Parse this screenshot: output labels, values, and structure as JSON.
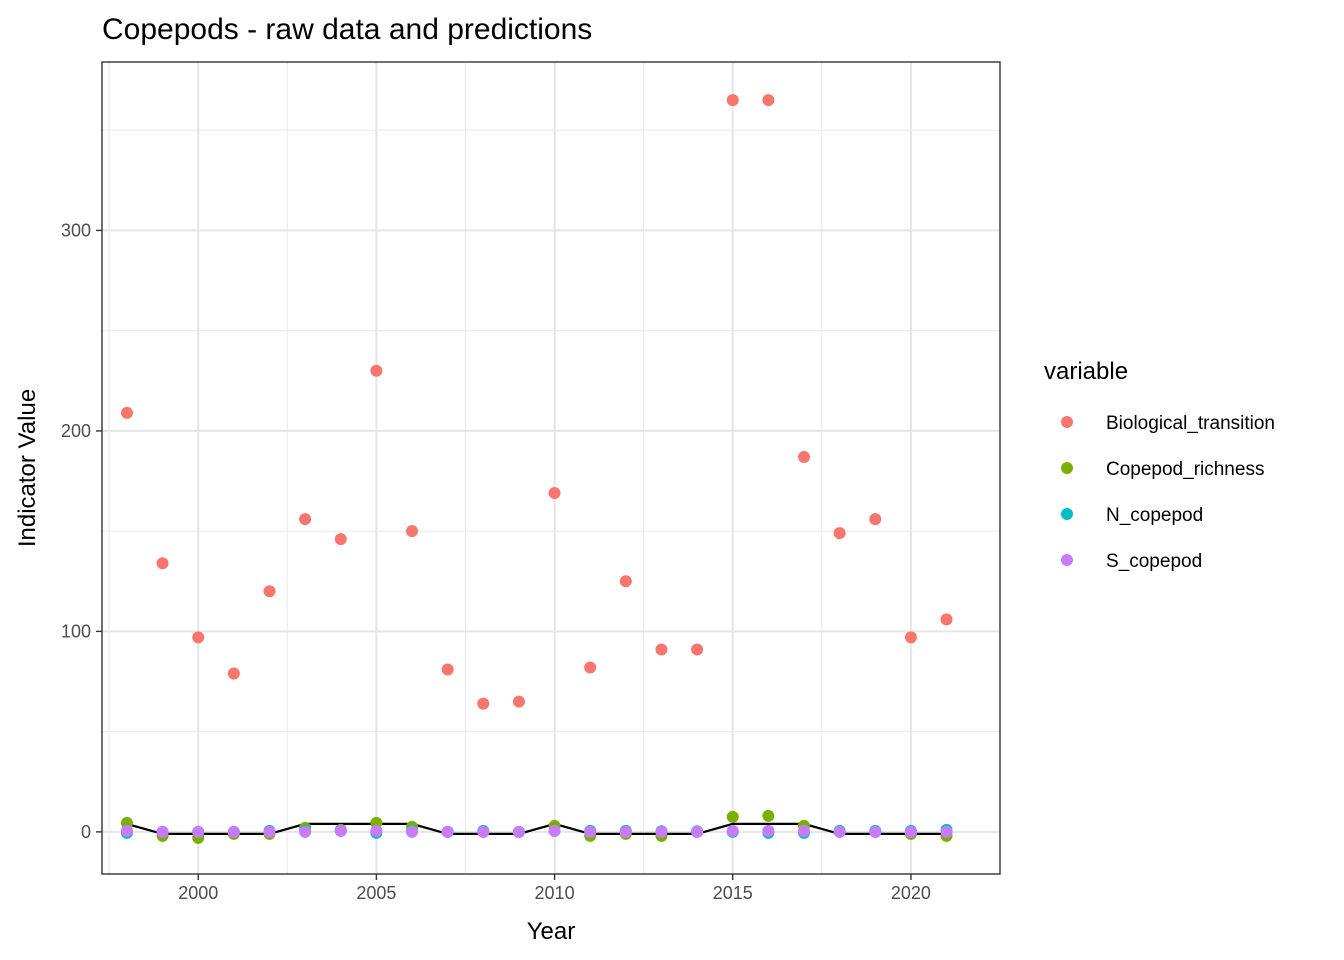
{
  "chart_data": {
    "type": "scatter",
    "title": "Copepods - raw data and predictions",
    "xlabel": "Year",
    "ylabel": "Indicator Value",
    "xlim": [
      1997.3,
      2022.5
    ],
    "ylim": [
      -21,
      384
    ],
    "x_ticks": [
      2000,
      2005,
      2010,
      2015,
      2020
    ],
    "y_ticks": [
      0,
      100,
      200,
      300
    ],
    "grid": true,
    "legend_title": "variable",
    "legend_position": "right",
    "x": [
      1998,
      1999,
      2000,
      2001,
      2002,
      2003,
      2004,
      2005,
      2006,
      2007,
      2008,
      2009,
      2010,
      2011,
      2012,
      2013,
      2014,
      2015,
      2016,
      2017,
      2018,
      2019,
      2020,
      2021
    ],
    "series": [
      {
        "name": "Biological_transition",
        "color": "#F8766D",
        "values": [
          209,
          134,
          97,
          79,
          120,
          156,
          146,
          230,
          150,
          81,
          64,
          65,
          169,
          82,
          125,
          91,
          91,
          365,
          365,
          187,
          149,
          156,
          97,
          106
        ]
      },
      {
        "name": "Copepod_richness",
        "color": "#7CAE00",
        "values": [
          4.5,
          -2,
          -3,
          -1,
          -1,
          2,
          1,
          4.5,
          2.5,
          0,
          0,
          0,
          3,
          -2,
          -1,
          -2,
          0,
          7.5,
          8,
          3,
          0,
          0,
          -1,
          -2
        ]
      },
      {
        "name": "N_copepod",
        "color": "#00BFC4",
        "values": [
          -0.5,
          0,
          0,
          0,
          0.5,
          0.5,
          0.5,
          -0.5,
          0.5,
          0,
          0.5,
          0,
          0.5,
          0.5,
          0.5,
          0.3,
          0.3,
          0,
          -0.5,
          -0.5,
          0.5,
          0.5,
          0.5,
          1
        ]
      },
      {
        "name": "S_copepod",
        "color": "#C77CFF",
        "values": [
          0.5,
          0,
          0,
          0,
          0,
          0,
          0.5,
          0.5,
          0,
          0,
          0,
          0,
          0.5,
          0,
          0,
          0,
          0,
          0.5,
          0.5,
          0.5,
          0,
          0,
          0,
          0
        ]
      }
    ],
    "prediction_line": {
      "color": "#000000",
      "values": [
        4,
        -1,
        -1,
        -1,
        -1,
        4,
        4,
        4,
        4,
        -1,
        -1,
        -1,
        4,
        -1,
        -1,
        -1,
        -1,
        4,
        4,
        4,
        -1,
        -1,
        -1,
        -1
      ]
    }
  }
}
